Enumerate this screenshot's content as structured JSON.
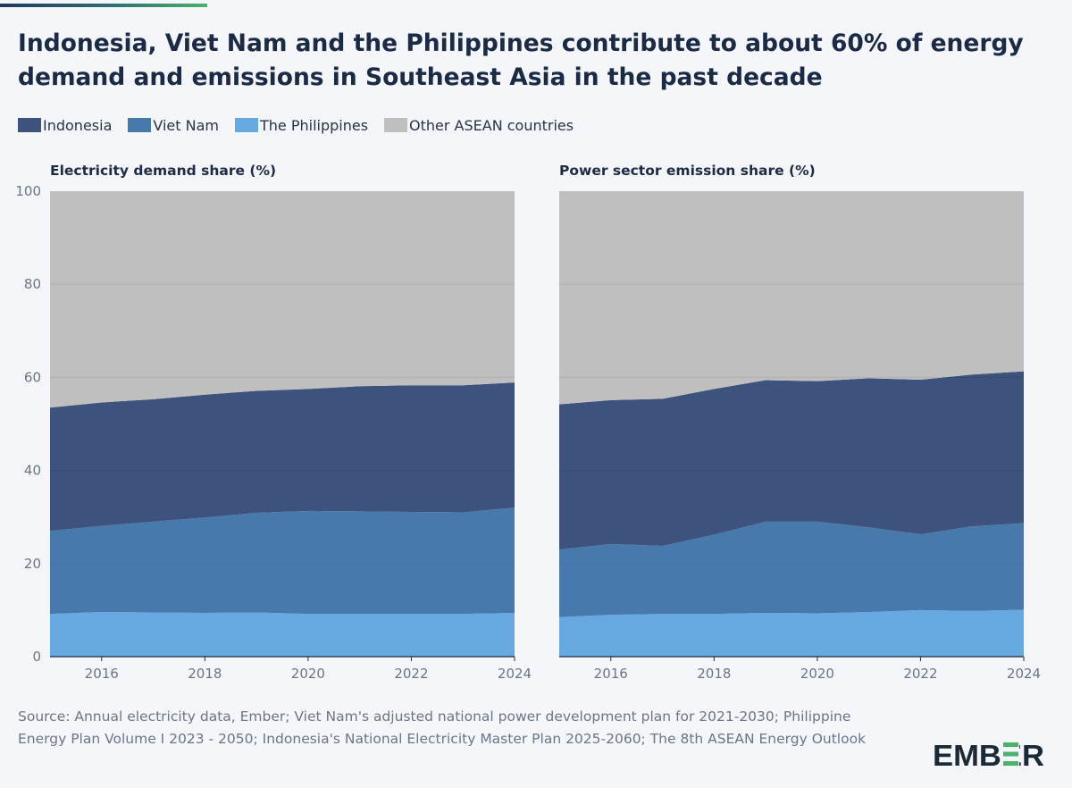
{
  "title": "Indonesia, Viet Nam and the Philippines contribute to about 60% of energy demand and emissions in Southeast Asia in the past decade",
  "legend": [
    {
      "label": "Indonesia",
      "color": "#3d527c"
    },
    {
      "label": "Viet Nam",
      "color": "#4879ad"
    },
    {
      "label": "The Philippines",
      "color": "#66a9e1"
    },
    {
      "label": "Other ASEAN countries",
      "color": "#bfbfbf"
    }
  ],
  "chart_data": [
    {
      "type": "area",
      "stacked": true,
      "title": "Electricity demand share (%)",
      "xlabel": "",
      "ylabel": "",
      "x": [
        2015,
        2016,
        2017,
        2018,
        2019,
        2020,
        2021,
        2022,
        2023,
        2024
      ],
      "xticks": [
        "2016",
        "2018",
        "2020",
        "2022",
        "2024"
      ],
      "xlim": [
        2015,
        2024
      ],
      "yticks": [
        "0",
        "20",
        "40",
        "60",
        "80",
        "100"
      ],
      "ylim": [
        0,
        100
      ],
      "series": [
        {
          "name": "The Philippines",
          "values": [
            9.2,
            9.6,
            9.5,
            9.4,
            9.5,
            9.2,
            9.2,
            9.2,
            9.2,
            9.4
          ]
        },
        {
          "name": "Viet Nam",
          "values": [
            17.8,
            18.5,
            19.5,
            20.5,
            21.4,
            22.1,
            22.0,
            21.9,
            21.8,
            22.6
          ]
        },
        {
          "name": "Indonesia",
          "values": [
            26.5,
            26.5,
            26.3,
            26.4,
            26.2,
            26.2,
            26.9,
            27.2,
            27.3,
            26.9
          ]
        },
        {
          "name": "Other ASEAN countries",
          "values": [
            46.5,
            45.4,
            44.7,
            43.7,
            42.9,
            42.5,
            41.9,
            41.7,
            41.7,
            41.1
          ]
        }
      ]
    },
    {
      "type": "area",
      "stacked": true,
      "title": "Power sector emission share (%)",
      "xlabel": "",
      "ylabel": "",
      "x": [
        2015,
        2016,
        2017,
        2018,
        2019,
        2020,
        2021,
        2022,
        2023,
        2024
      ],
      "xticks": [
        "2016",
        "2018",
        "2020",
        "2022",
        "2024"
      ],
      "xlim": [
        2015,
        2024
      ],
      "ylim": [
        0,
        100
      ],
      "series": [
        {
          "name": "The Philippines",
          "values": [
            8.5,
            9.0,
            9.2,
            9.2,
            9.4,
            9.3,
            9.6,
            10.0,
            9.8,
            10.1
          ]
        },
        {
          "name": "Viet Nam",
          "values": [
            14.5,
            15.2,
            14.6,
            17.0,
            19.6,
            19.7,
            18.2,
            16.3,
            18.2,
            18.6
          ]
        },
        {
          "name": "Indonesia",
          "values": [
            31.2,
            30.9,
            31.6,
            31.3,
            30.4,
            30.2,
            32.0,
            33.2,
            32.6,
            32.6
          ]
        },
        {
          "name": "Other ASEAN countries",
          "values": [
            45.8,
            44.9,
            44.6,
            42.5,
            40.6,
            40.8,
            40.2,
            40.5,
            39.4,
            38.7
          ]
        }
      ]
    }
  ],
  "source": "Source: Annual electricity data, Ember; Viet Nam's adjusted national power development plan for 2021-2030; Philippine Energy Plan Volume I 2023 - 2050; Indonesia's National Electricity Master Plan 2025-2060; The 8th ASEAN Energy Outlook",
  "logo_text": "EMBER",
  "colors": {
    "accent_green": "#49b26b",
    "logo_dark": "#1b2a36"
  }
}
